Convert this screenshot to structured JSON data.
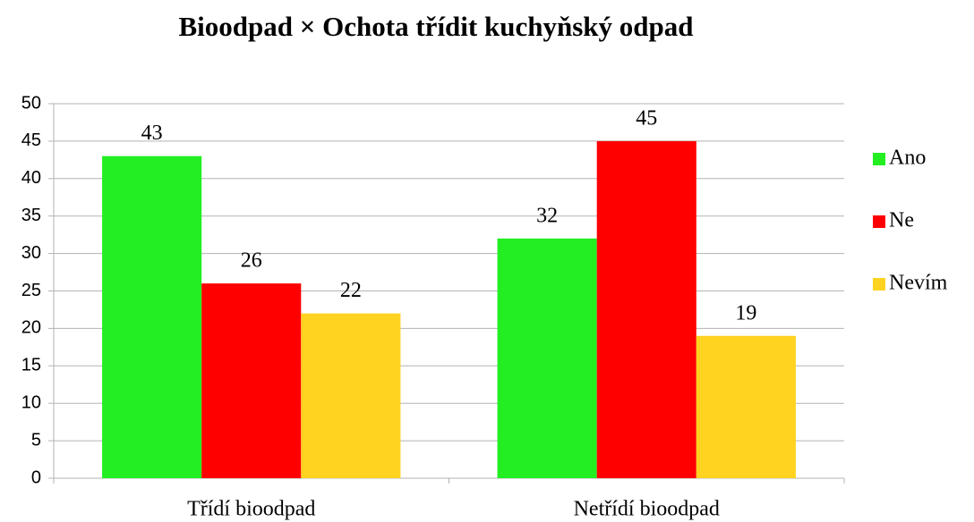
{
  "chart_data": {
    "type": "bar",
    "title": "Bioodpad × Ochota třídit kuchyňský odpad",
    "categories": [
      "Třídí bioodpad",
      "Netřídí bioodpad"
    ],
    "series": [
      {
        "name": "Ano",
        "color": "#22ee22",
        "values": [
          43,
          32
        ]
      },
      {
        "name": "Ne",
        "color": "#ff0000",
        "values": [
          26,
          45
        ]
      },
      {
        "name": "Nevím",
        "color": "#ffd320",
        "values": [
          22,
          19
        ]
      }
    ],
    "ylim": [
      0,
      50
    ],
    "yticks": [
      0,
      5,
      10,
      15,
      20,
      25,
      30,
      35,
      40,
      45,
      50
    ],
    "grid": true,
    "legend": "right",
    "value_labels_shown": true
  }
}
